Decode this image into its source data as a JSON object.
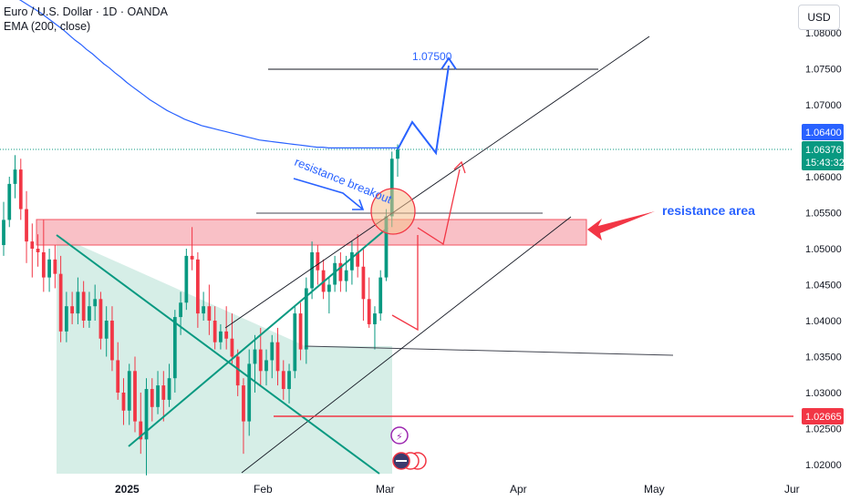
{
  "header": {
    "symbol_line": "Euro / U.S. Dollar · 1D · OANDA",
    "indicator_line": "EMA (200, close)"
  },
  "currency_button": "USD",
  "price_scale": {
    "ticks": [
      "1.08000",
      "1.07500",
      "1.07000",
      "1.06000",
      "1.05500",
      "1.05000",
      "1.04500",
      "1.04000",
      "1.03500",
      "1.03000",
      "1.02500",
      "1.02000"
    ],
    "ema_label": "1.06400",
    "last_price_label": "1.06376",
    "countdown_label": "15:43:32",
    "support_label": "1.02665"
  },
  "time_axis": {
    "labels": [
      "2025",
      "Feb",
      "Mar",
      "Apr",
      "May",
      "Jur"
    ]
  },
  "annotations": {
    "target_text": "1.07500",
    "breakout_text": "resistance breakout",
    "area_text": "resistance area"
  },
  "colors": {
    "up": "#089981",
    "down": "#f23645",
    "ema": "#2962ff",
    "channel_fill": "#d2ece4",
    "resistance_fill": "#f8b6bd",
    "projection_blue": "#2962ff",
    "projection_red": "#f23645"
  },
  "chart_data": {
    "type": "candlestick",
    "symbol": "Euro / U.S. Dollar",
    "timeframe": "1D",
    "candles": [
      [
        1.0505,
        1.0565,
        1.049,
        1.054
      ],
      [
        1.054,
        1.06,
        1.053,
        1.059
      ],
      [
        1.059,
        1.063,
        1.057,
        1.061
      ],
      [
        1.061,
        1.0625,
        1.054,
        1.0555
      ],
      [
        1.0555,
        1.058,
        1.048,
        1.051
      ],
      [
        1.051,
        1.0535,
        1.046,
        1.05
      ],
      [
        1.05,
        1.052,
        1.0475,
        1.0495
      ],
      [
        1.0495,
        1.054,
        1.044,
        1.046
      ],
      [
        1.046,
        1.05,
        1.044,
        1.0485
      ],
      [
        1.0485,
        1.0505,
        1.0445,
        1.0465
      ],
      [
        1.0465,
        1.049,
        1.037,
        1.0385
      ],
      [
        1.0385,
        1.044,
        1.037,
        1.042
      ],
      [
        1.042,
        1.044,
        1.0395,
        1.041
      ],
      [
        1.041,
        1.046,
        1.0395,
        1.044
      ],
      [
        1.044,
        1.0455,
        1.039,
        1.04
      ],
      [
        1.04,
        1.044,
        1.039,
        1.042
      ],
      [
        1.042,
        1.045,
        1.04,
        1.043
      ],
      [
        1.043,
        1.044,
        1.036,
        1.0375
      ],
      [
        1.0375,
        1.042,
        1.035,
        1.04
      ],
      [
        1.04,
        1.042,
        1.033,
        1.0345
      ],
      [
        1.0345,
        1.037,
        1.029,
        1.03
      ],
      [
        1.03,
        1.032,
        1.0255,
        1.0275
      ],
      [
        1.0275,
        1.034,
        1.0255,
        1.033
      ],
      [
        1.033,
        1.035,
        1.0245,
        1.026
      ],
      [
        1.026,
        1.03,
        1.0215,
        1.0235
      ],
      [
        1.0235,
        1.032,
        1.0185,
        1.0305
      ],
      [
        1.0305,
        1.032,
        1.026,
        1.028
      ],
      [
        1.028,
        1.033,
        1.027,
        1.031
      ],
      [
        1.031,
        1.033,
        1.026,
        1.029
      ],
      [
        1.029,
        1.034,
        1.028,
        1.032
      ],
      [
        1.032,
        1.0415,
        1.03,
        1.0405
      ],
      [
        1.0405,
        1.044,
        1.038,
        1.0425
      ],
      [
        1.0425,
        1.05,
        1.0415,
        1.049
      ],
      [
        1.049,
        1.053,
        1.047,
        1.0485
      ],
      [
        1.0485,
        1.0495,
        1.039,
        1.041
      ],
      [
        1.041,
        1.044,
        1.04,
        1.042
      ],
      [
        1.042,
        1.045,
        1.038,
        1.04
      ],
      [
        1.04,
        1.042,
        1.036,
        1.037
      ],
      [
        1.037,
        1.0395,
        1.036,
        1.0385
      ],
      [
        1.0385,
        1.042,
        1.036,
        1.0375
      ],
      [
        1.0375,
        1.041,
        1.034,
        1.035
      ],
      [
        1.035,
        1.036,
        1.0295,
        1.031
      ],
      [
        1.031,
        1.032,
        1.0215,
        1.026
      ],
      [
        1.026,
        1.036,
        1.024,
        1.034
      ],
      [
        1.034,
        1.038,
        1.03,
        1.036
      ],
      [
        1.036,
        1.039,
        1.031,
        1.033
      ],
      [
        1.033,
        1.036,
        1.031,
        1.0345
      ],
      [
        1.0345,
        1.038,
        1.032,
        1.037
      ],
      [
        1.037,
        1.039,
        1.031,
        1.033
      ],
      [
        1.033,
        1.0345,
        1.029,
        1.0305
      ],
      [
        1.0305,
        1.034,
        1.0285,
        1.033
      ],
      [
        1.033,
        1.042,
        1.032,
        1.041
      ],
      [
        1.041,
        1.0425,
        1.0345,
        1.036
      ],
      [
        1.036,
        1.046,
        1.034,
        1.0445
      ],
      [
        1.0445,
        1.051,
        1.043,
        1.0495
      ],
      [
        1.0495,
        1.0505,
        1.045,
        1.047
      ],
      [
        1.047,
        1.0485,
        1.043,
        1.044
      ],
      [
        1.044,
        1.046,
        1.041,
        1.045
      ],
      [
        1.045,
        1.049,
        1.044,
        1.048
      ],
      [
        1.048,
        1.0495,
        1.044,
        1.0455
      ],
      [
        1.0455,
        1.049,
        1.044,
        1.047
      ],
      [
        1.047,
        1.051,
        1.045,
        1.0495
      ],
      [
        1.0495,
        1.052,
        1.046,
        1.0475
      ],
      [
        1.0475,
        1.05,
        1.04,
        1.043
      ],
      [
        1.043,
        1.046,
        1.039,
        1.0395
      ],
      [
        1.0395,
        1.042,
        1.036,
        1.041
      ],
      [
        1.041,
        1.047,
        1.04,
        1.046
      ],
      [
        1.046,
        1.0555,
        1.0455,
        1.0545
      ],
      [
        1.0545,
        1.0635,
        1.053,
        1.0625
      ],
      [
        1.0625,
        1.0645,
        1.06,
        1.0638
      ]
    ],
    "ema200": [
      1.086,
      1.0856,
      1.0852,
      1.0848,
      1.0843,
      1.0838,
      1.0833,
      1.0828,
      1.0822,
      1.0816,
      1.081,
      1.0804,
      1.0797,
      1.079,
      1.0784,
      1.0777,
      1.0771,
      1.0764,
      1.0757,
      1.0751,
      1.0744,
      1.0738,
      1.0731,
      1.0725,
      1.0719,
      1.0713,
      1.0707,
      1.0702,
      1.0697,
      1.0692,
      1.0688,
      1.0684,
      1.068,
      1.0677,
      1.0674,
      1.0671,
      1.0669,
      1.0667,
      1.0665,
      1.0663,
      1.0661,
      1.0659,
      1.0657,
      1.0655,
      1.0653,
      1.0651,
      1.065,
      1.0649,
      1.0648,
      1.0647,
      1.0646,
      1.0645,
      1.0644,
      1.0643,
      1.0642,
      1.0641,
      1.0641,
      1.064,
      1.064,
      1.064,
      1.064,
      1.064,
      1.064,
      1.064,
      1.064,
      1.064,
      1.064,
      1.064,
      1.064,
      1.064
    ],
    "y_ticks": [
      1.08,
      1.075,
      1.07,
      1.06,
      1.055,
      1.05,
      1.045,
      1.04,
      1.035,
      1.03,
      1.025,
      1.02
    ],
    "ylim": [
      1.0185,
      1.0815
    ],
    "last_price": 1.06376,
    "ema_value": 1.064,
    "support_level": 1.02665,
    "resistance_zone": [
      1.0505,
      1.054
    ],
    "target_level": 1.075,
    "x_labels": [
      "2025",
      "Feb",
      "Mar",
      "Apr",
      "May",
      "Jur"
    ],
    "grid": false
  }
}
